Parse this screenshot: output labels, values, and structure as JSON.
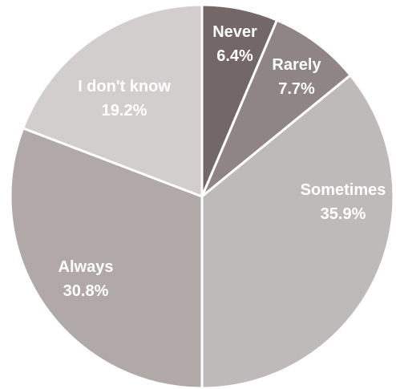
{
  "chart_data": {
    "type": "pie",
    "title": "",
    "start_angle_deg": 0,
    "direction": "clockwise",
    "legend": "none",
    "slices": [
      {
        "label": "Never",
        "value": 6.4,
        "value_label": "6.4%",
        "color": "#736867"
      },
      {
        "label": "Rarely",
        "value": 7.7,
        "value_label": "7.7%",
        "color": "#8f8584"
      },
      {
        "label": "Sometimes",
        "value": 35.9,
        "value_label": "35.9%",
        "color": "#bfbaba"
      },
      {
        "label": "Always",
        "value": 30.8,
        "value_label": "30.8%",
        "color": "#b0a9a8"
      },
      {
        "label": "I don't know",
        "value": 19.2,
        "value_label": "19.2%",
        "color": "#d1cecd"
      }
    ]
  }
}
